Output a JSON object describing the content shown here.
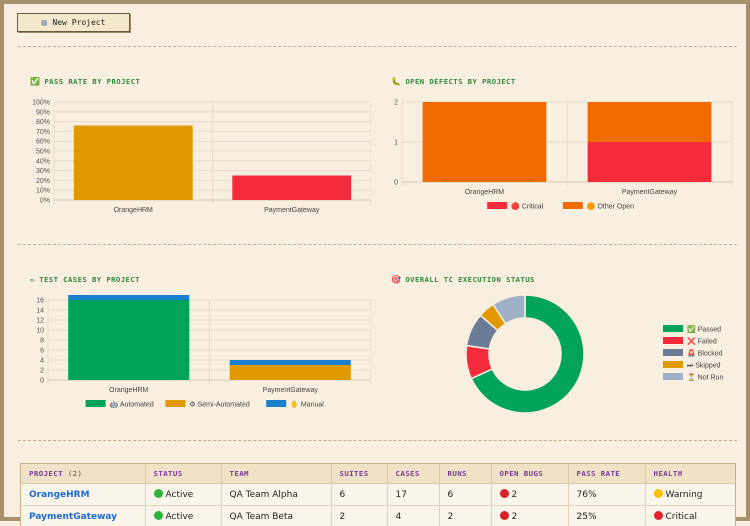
{
  "toolbar": {
    "new_project_label": "New Project",
    "new_project_icon": "note-icon"
  },
  "panels": {
    "pass_rate": {
      "title": "PASS RATE BY PROJECT",
      "icon": "✅"
    },
    "open_defects": {
      "title": "OPEN DEFECTS BY PROJECT",
      "icon": "🐛"
    },
    "test_cases": {
      "title": "TEST CASES BY PROJECT",
      "icon": "✏"
    },
    "execution": {
      "title": "OVERALL TC EXECUTION STATUS",
      "icon": "🎯"
    }
  },
  "chart_data": [
    {
      "id": "pass_rate",
      "type": "bar",
      "categories": [
        "OrangeHRM",
        "PaymentGateway"
      ],
      "values": [
        76,
        25
      ],
      "colors": [
        "#e09a00",
        "#f52a3a"
      ],
      "ylim": [
        0,
        100
      ],
      "yticks": [
        "0%",
        "10%",
        "20%",
        "30%",
        "40%",
        "50%",
        "60%",
        "70%",
        "80%",
        "90%",
        "100%"
      ]
    },
    {
      "id": "open_defects",
      "type": "bar",
      "stacked": true,
      "categories": [
        "OrangeHRM",
        "PaymentGateway"
      ],
      "ylim": [
        0,
        2
      ],
      "yticks": [
        "0",
        "1",
        "2"
      ],
      "series": [
        {
          "name": "Critical",
          "icon": "🔴",
          "color": "#f52a3a",
          "values": [
            0,
            1
          ]
        },
        {
          "name": "Other Open",
          "icon": "🟠",
          "color": "#ef6a00",
          "values": [
            2,
            1
          ]
        }
      ],
      "legend": "bottom"
    },
    {
      "id": "test_cases",
      "type": "bar",
      "stacked": true,
      "categories": [
        "OrangeHRM",
        "PaymentGateway"
      ],
      "ylim": [
        0,
        16
      ],
      "yticks": [
        "0",
        "2",
        "4",
        "6",
        "8",
        "10",
        "12",
        "14",
        "16"
      ],
      "series": [
        {
          "name": "Automated",
          "icon": "🤖",
          "color": "#00a35a",
          "values": [
            16,
            0
          ]
        },
        {
          "name": "Semi-Automated",
          "icon": "⚙",
          "color": "#e09a00",
          "values": [
            0,
            3
          ]
        },
        {
          "name": "Manual",
          "icon": "✋",
          "color": "#1b7fd0",
          "values": [
            1,
            1
          ]
        }
      ],
      "legend": "bottom"
    },
    {
      "id": "execution",
      "type": "pie",
      "donut": true,
      "slices": [
        {
          "name": "Passed",
          "icon": "✅",
          "color": "#00a35a",
          "value": 15
        },
        {
          "name": "Failed",
          "icon": "❌",
          "color": "#f52a3a",
          "value": 2
        },
        {
          "name": "Blocked",
          "icon": "🚨",
          "color": "#6a7c96",
          "value": 2
        },
        {
          "name": "Skipped",
          "icon": "⏭",
          "color": "#e09a00",
          "value": 1
        },
        {
          "name": "Not Run",
          "icon": "⏳",
          "color": "#9fb1c8",
          "value": 2
        }
      ],
      "legend": "right"
    }
  ],
  "table": {
    "columns": [
      "PROJECT",
      "STATUS",
      "TEAM",
      "SUITES",
      "CASES",
      "RUNS",
      "OPEN BUGS",
      "PASS RATE",
      "HEALTH"
    ],
    "project_count": "(2)",
    "rows": [
      {
        "project": "OrangeHRM",
        "status": "Active",
        "status_color": "#2fb33a",
        "team": "QA Team Alpha",
        "suites": "6",
        "cases": "17",
        "runs": "6",
        "bugs": "2",
        "pass_rate": "76%",
        "health": "Warning",
        "health_color": "#f3c300"
      },
      {
        "project": "PaymentGateway",
        "status": "Active",
        "status_color": "#2fb33a",
        "team": "QA Team Beta",
        "suites": "2",
        "cases": "4",
        "runs": "2",
        "bugs": "2",
        "pass_rate": "25%",
        "health": "Critical",
        "health_color": "#e0262f"
      }
    ]
  }
}
